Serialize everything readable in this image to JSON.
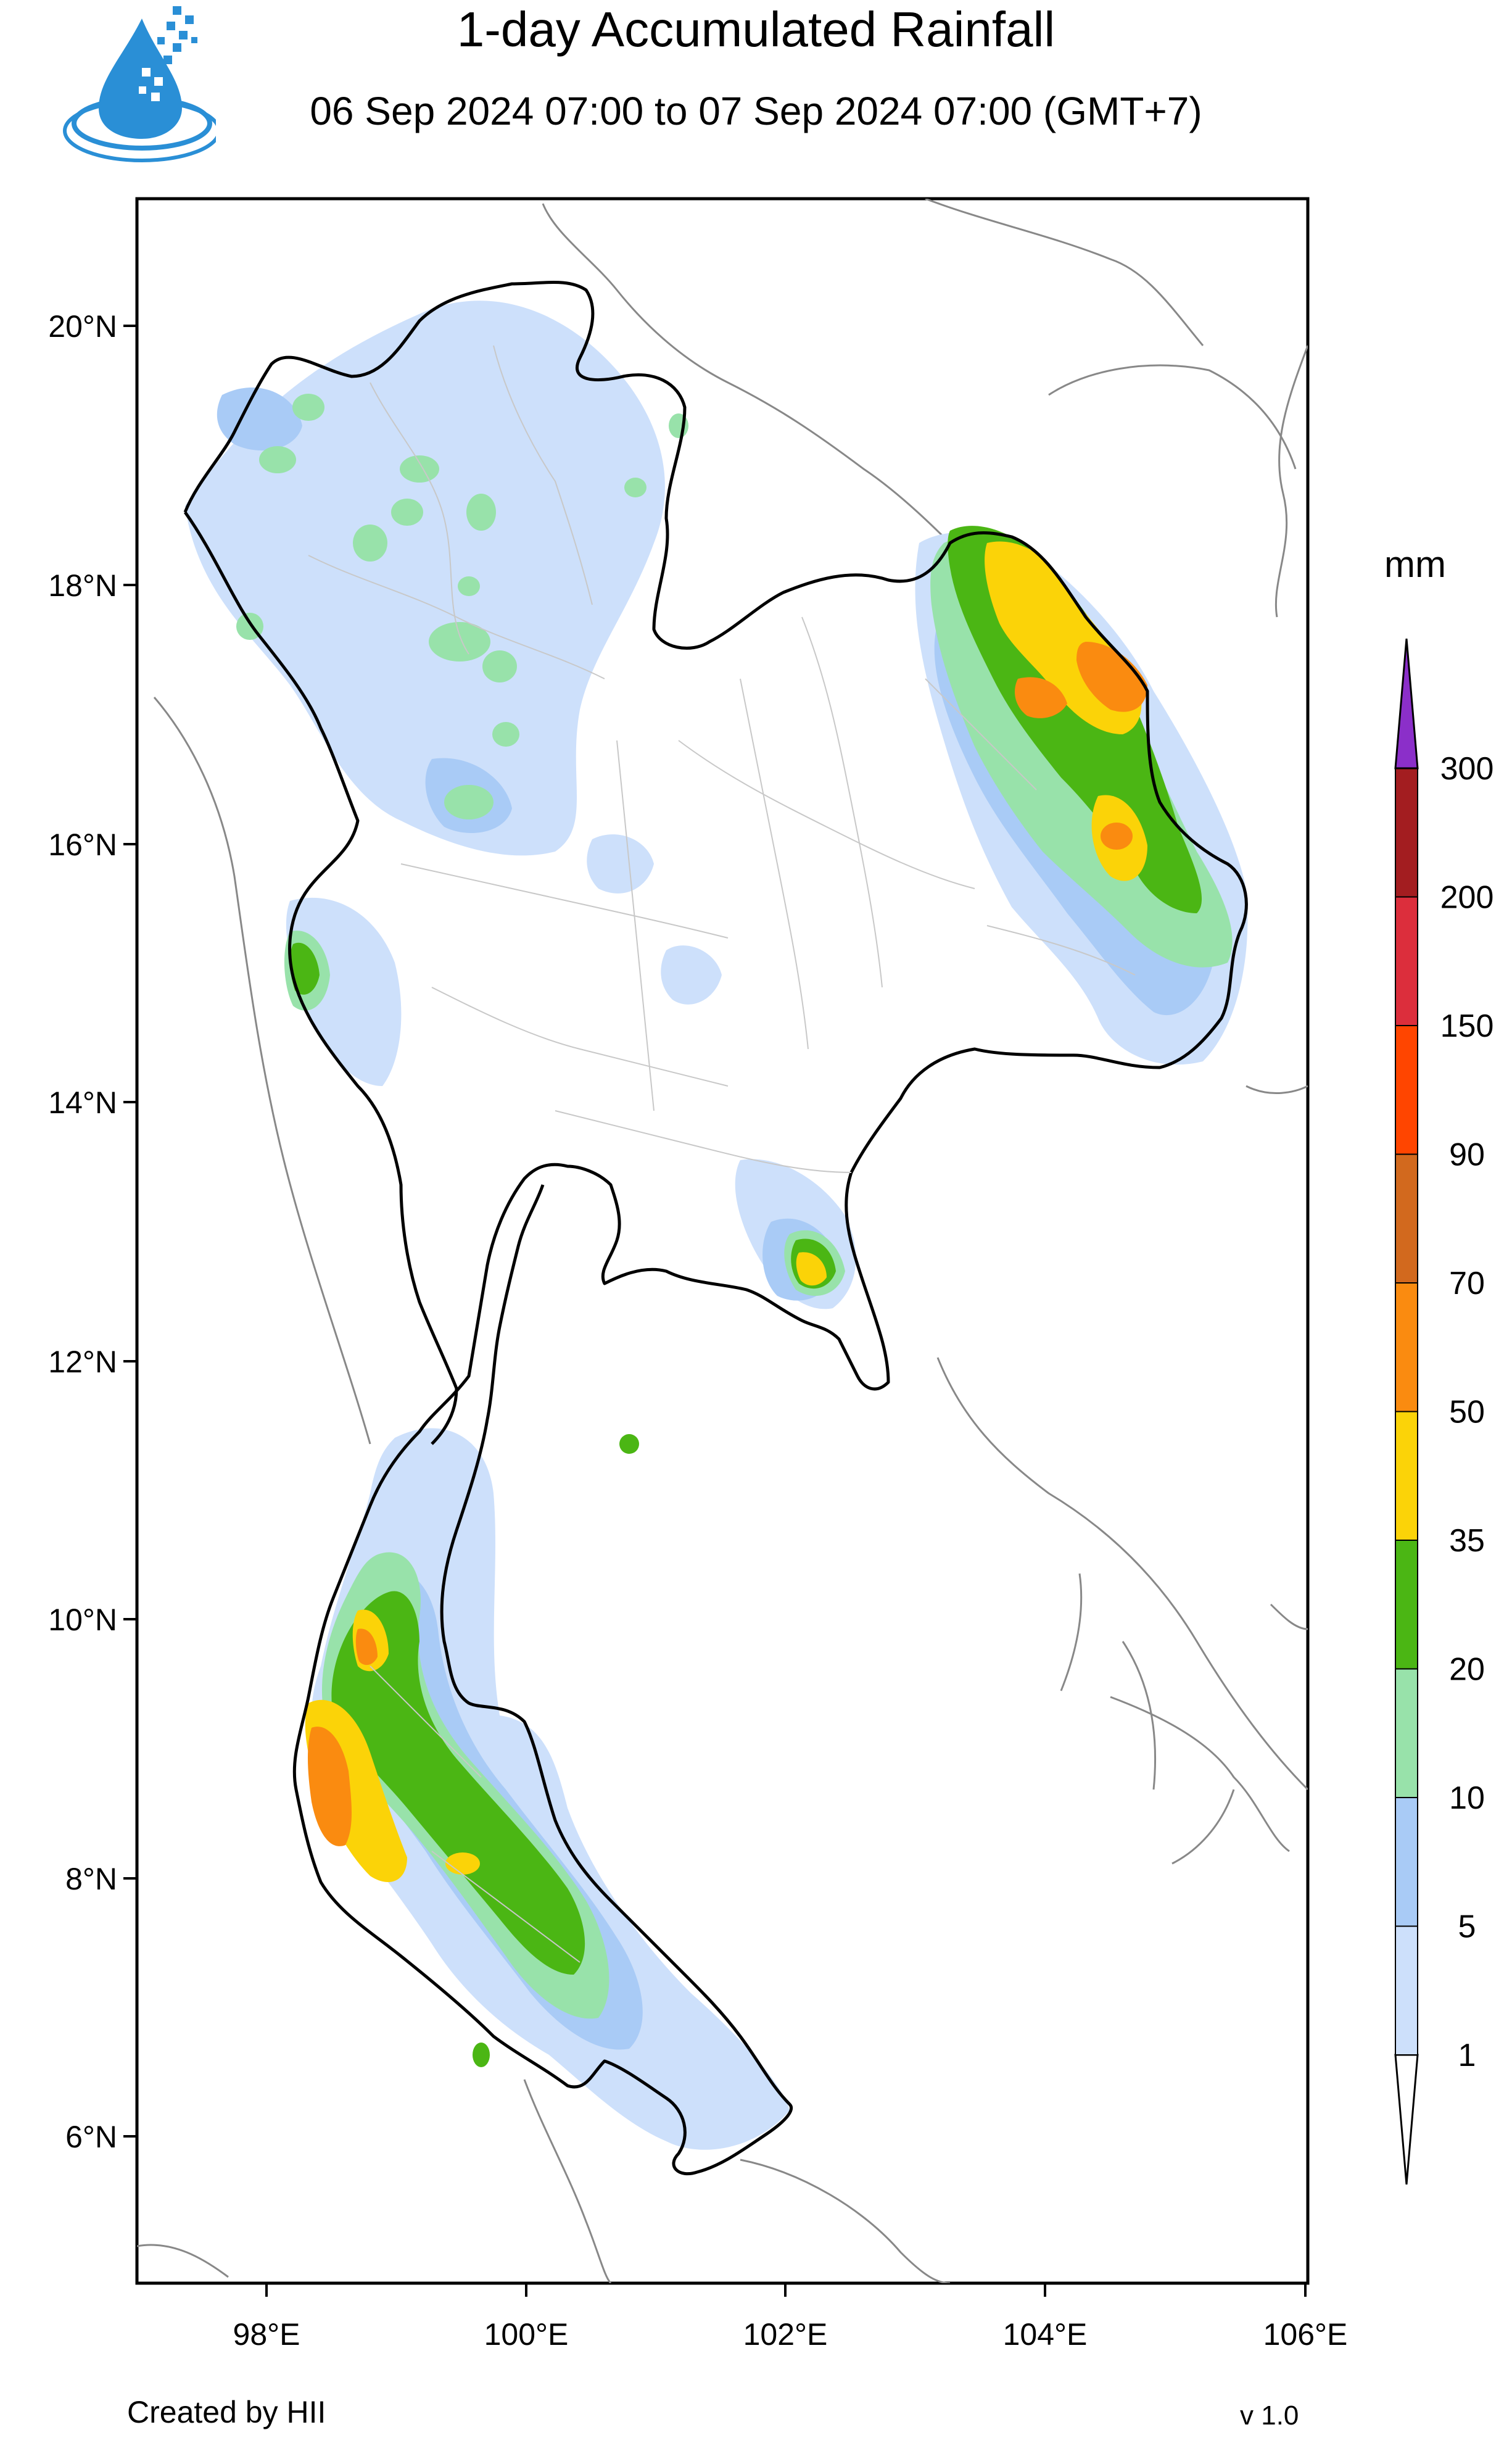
{
  "header": {
    "title": "1-day Accumulated Rainfall",
    "subtitle": "06 Sep 2024 07:00 to 07 Sep 2024 07:00 (GMT+7)"
  },
  "footer": {
    "credit": "Created by HII",
    "version": "v 1.0"
  },
  "map": {
    "lat_ticks": [
      "20°N",
      "18°N",
      "16°N",
      "14°N",
      "12°N",
      "10°N",
      "8°N",
      "6°N"
    ],
    "lon_ticks": [
      "98°E",
      "100°E",
      "102°E",
      "104°E",
      "106°E"
    ],
    "lat_range": [
      5.0,
      21.0
    ],
    "lon_range": [
      97.0,
      106.0
    ]
  },
  "legend": {
    "unit": "mm",
    "levels": [
      "1",
      "5",
      "10",
      "20",
      "35",
      "50",
      "70",
      "90",
      "150",
      "200",
      "300"
    ],
    "colors": [
      "#cde0fb",
      "#a9cbf6",
      "#98e2aa",
      "#4bb614",
      "#fbd308",
      "#fa8b10",
      "#d2691e",
      "#ff4500",
      "#dc2e3c",
      "#a31d20",
      "#8b2fc9"
    ]
  },
  "icons": {
    "logo": "water-drop-logo-icon"
  }
}
